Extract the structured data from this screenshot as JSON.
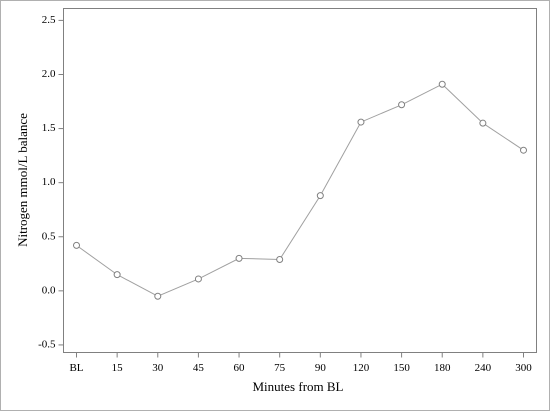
{
  "chart_data": {
    "type": "line",
    "x_label": "Minutes from BL",
    "y_label": "Nitrogen mmol/L balance",
    "categories": [
      "BL",
      "15",
      "30",
      "45",
      "60",
      "75",
      "90",
      "120",
      "150",
      "180",
      "240",
      "300"
    ],
    "values": [
      0.42,
      0.15,
      -0.05,
      0.11,
      0.3,
      0.29,
      0.88,
      1.56,
      1.72,
      1.91,
      1.55,
      1.3
    ],
    "color": "#a0a0a0",
    "ylim": [
      -0.57,
      2.61
    ],
    "yticks": [
      -0.5,
      {
        "value": 0,
        "label": "0.0"
      },
      0.5,
      {
        "value": 1,
        "label": "1.0"
      },
      1.5,
      {
        "value": 2,
        "label": "2.0"
      },
      2.5
    ]
  }
}
